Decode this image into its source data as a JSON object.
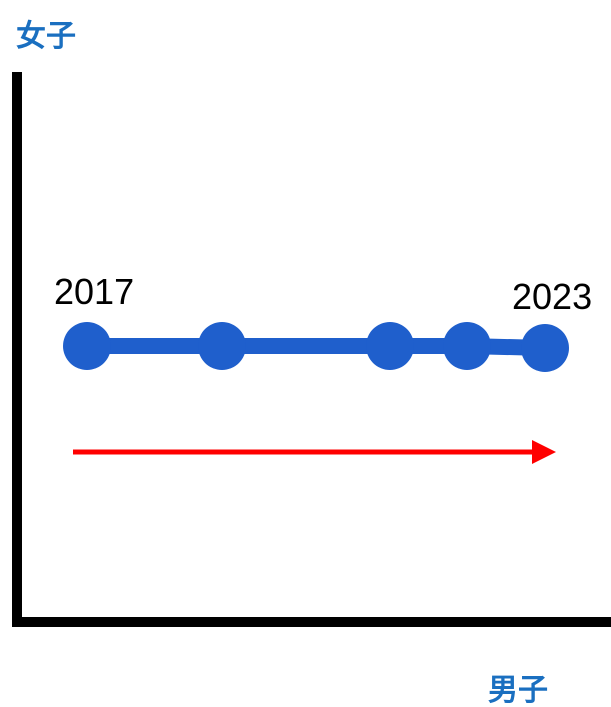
{
  "y_axis_label": "女子",
  "x_axis_label": "男子",
  "start_label": "2017",
  "end_label": "2023"
}
